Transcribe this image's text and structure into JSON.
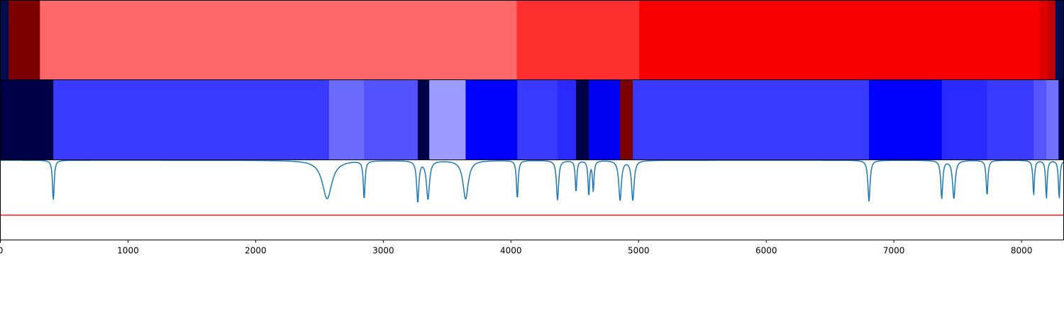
{
  "chart_data": {
    "type": "heatmap",
    "title": "",
    "xlabel": "",
    "ylabel": "",
    "xlim": [
      0,
      8330
    ],
    "grid": false,
    "legend": "none",
    "x_ticks": [
      {
        "value": 0,
        "label": "0"
      },
      {
        "value": 1000,
        "label": "1000"
      },
      {
        "value": 2000,
        "label": "2000"
      },
      {
        "value": 3000,
        "label": "3000"
      },
      {
        "value": 4000,
        "label": "4000"
      },
      {
        "value": 5000,
        "label": "5000"
      },
      {
        "value": 6000,
        "label": "6000"
      },
      {
        "value": 7000,
        "label": "7000"
      },
      {
        "value": 8000,
        "label": "8000"
      }
    ],
    "strip_top": {
      "segments": [
        {
          "start": 0,
          "end": 65,
          "color": "#000e4f"
        },
        {
          "start": 65,
          "end": 310,
          "color": "#7d0000"
        },
        {
          "start": 310,
          "end": 4045,
          "color": "#ff6868"
        },
        {
          "start": 4045,
          "end": 5005,
          "color": "#ff2f2f"
        },
        {
          "start": 5005,
          "end": 8140,
          "color": "#f80000"
        },
        {
          "start": 8140,
          "end": 8205,
          "color": "#e00000"
        },
        {
          "start": 8205,
          "end": 8265,
          "color": "#c30000"
        },
        {
          "start": 8265,
          "end": 8330,
          "color": "#000e4f"
        }
      ]
    },
    "strip_bottom": {
      "segments": [
        {
          "start": 0,
          "end": 415,
          "color": "#000048"
        },
        {
          "start": 415,
          "end": 2575,
          "color": "#3a3aff"
        },
        {
          "start": 2575,
          "end": 2850,
          "color": "#6a6aff"
        },
        {
          "start": 2850,
          "end": 3270,
          "color": "#5252ff"
        },
        {
          "start": 3270,
          "end": 3360,
          "color": "#000048"
        },
        {
          "start": 3360,
          "end": 3645,
          "color": "#9a9aff"
        },
        {
          "start": 3645,
          "end": 4050,
          "color": "#0000ff"
        },
        {
          "start": 4050,
          "end": 4365,
          "color": "#3a3aff"
        },
        {
          "start": 4365,
          "end": 4510,
          "color": "#2a2aff"
        },
        {
          "start": 4510,
          "end": 4610,
          "color": "#000048"
        },
        {
          "start": 4610,
          "end": 4855,
          "color": "#0000f0"
        },
        {
          "start": 4855,
          "end": 4955,
          "color": "#7d0000"
        },
        {
          "start": 4955,
          "end": 6805,
          "color": "#3a3aff"
        },
        {
          "start": 6805,
          "end": 7375,
          "color": "#0000ff"
        },
        {
          "start": 7375,
          "end": 7730,
          "color": "#2a2aff"
        },
        {
          "start": 7730,
          "end": 8095,
          "color": "#3a3aff"
        },
        {
          "start": 8095,
          "end": 8195,
          "color": "#5656ff"
        },
        {
          "start": 8195,
          "end": 8290,
          "color": "#7070ff"
        },
        {
          "start": 8290,
          "end": 8330,
          "color": "#000048"
        }
      ]
    },
    "signal": {
      "color": "#1f77b4",
      "ylim": [
        0,
        1
      ],
      "baseline": 0.995,
      "dips": [
        {
          "x": 415,
          "depth": 0.5,
          "width": 8
        },
        {
          "x": 2560,
          "depth": 0.48,
          "width": 45
        },
        {
          "x": 2850,
          "depth": 0.48,
          "width": 8
        },
        {
          "x": 3270,
          "depth": 0.52,
          "width": 10
        },
        {
          "x": 3350,
          "depth": 0.48,
          "width": 14
        },
        {
          "x": 3645,
          "depth": 0.48,
          "width": 25
        },
        {
          "x": 4050,
          "depth": 0.48,
          "width": 8
        },
        {
          "x": 4365,
          "depth": 0.5,
          "width": 10
        },
        {
          "x": 4510,
          "depth": 0.4,
          "width": 7
        },
        {
          "x": 4610,
          "depth": 0.44,
          "width": 7
        },
        {
          "x": 4645,
          "depth": 0.38,
          "width": 7
        },
        {
          "x": 4855,
          "depth": 0.5,
          "width": 12
        },
        {
          "x": 4955,
          "depth": 0.5,
          "width": 12
        },
        {
          "x": 6805,
          "depth": 0.52,
          "width": 10
        },
        {
          "x": 7375,
          "depth": 0.48,
          "width": 9
        },
        {
          "x": 7470,
          "depth": 0.48,
          "width": 12
        },
        {
          "x": 7730,
          "depth": 0.44,
          "width": 8
        },
        {
          "x": 8095,
          "depth": 0.44,
          "width": 7
        },
        {
          "x": 8195,
          "depth": 0.48,
          "width": 7
        },
        {
          "x": 8295,
          "depth": 0.48,
          "width": 7
        }
      ],
      "threshold": {
        "value": 0.31,
        "color": "#e8161b"
      }
    }
  }
}
